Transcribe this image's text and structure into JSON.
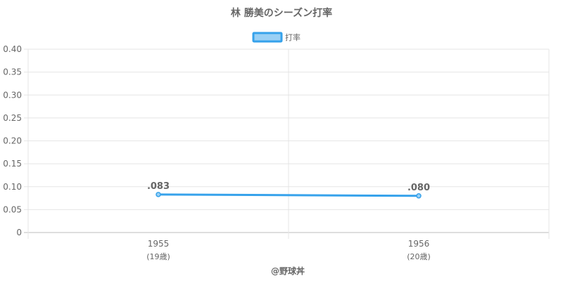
{
  "chart_data": {
    "type": "line",
    "title": "林 勝美のシーズン打率",
    "categories": [
      "1955",
      "1956"
    ],
    "category_sublabels": [
      "(19歳)",
      "(20歳)"
    ],
    "series": [
      {
        "name": "打率",
        "values": [
          0.083,
          0.08
        ],
        "data_labels": [
          ".083",
          ".080"
        ],
        "color": "#36a2eb",
        "fill_color": "#9ad0f5"
      }
    ],
    "ylim": [
      0,
      0.4
    ],
    "yticks": [
      "0",
      "0.05",
      "0.10",
      "0.15",
      "0.20",
      "0.25",
      "0.30",
      "0.35",
      "0.40"
    ],
    "grid": true,
    "legend_position": "top-center",
    "xlabel": "",
    "ylabel": ""
  },
  "footer": {
    "credit": "@野球丼"
  },
  "colors": {
    "grid": "#e5e5e5",
    "axis": "#bdbdbd",
    "text": "#666666"
  }
}
